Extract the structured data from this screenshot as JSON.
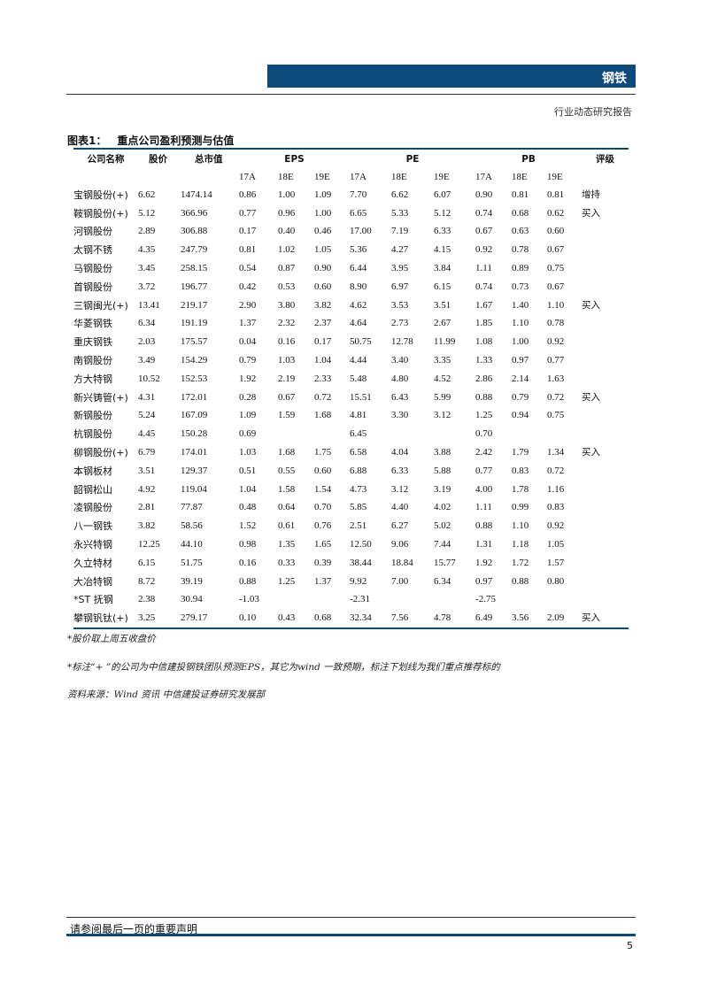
{
  "header": {
    "section": "钢铁",
    "report_type": "行业动态研究报告"
  },
  "figure": {
    "label": "图表1：",
    "title": "重点公司盈利预测与估值"
  },
  "table": {
    "headers": {
      "name": "公司名称",
      "price": "股价",
      "mcap": "总市值",
      "eps": "EPS",
      "pe": "PE",
      "pb": "PB",
      "rating": "评级"
    },
    "subheaders": [
      "17A",
      "18E",
      "19E",
      "17A",
      "18E",
      "19E",
      "17A",
      "18E",
      "19E"
    ],
    "rows": [
      [
        "宝钢股份(+)",
        "6.62",
        "1474.14",
        "0.86",
        "1.00",
        "1.09",
        "7.70",
        "6.62",
        "6.07",
        "0.90",
        "0.81",
        "0.81",
        "增持"
      ],
      [
        "鞍钢股份(+)",
        "5.12",
        "366.96",
        "0.77",
        "0.96",
        "1.00",
        "6.65",
        "5.33",
        "5.12",
        "0.74",
        "0.68",
        "0.62",
        "买入"
      ],
      [
        "河钢股份",
        "2.89",
        "306.88",
        "0.17",
        "0.40",
        "0.46",
        "17.00",
        "7.19",
        "6.33",
        "0.67",
        "0.63",
        "0.60",
        ""
      ],
      [
        "太钢不锈",
        "4.35",
        "247.79",
        "0.81",
        "1.02",
        "1.05",
        "5.36",
        "4.27",
        "4.15",
        "0.92",
        "0.78",
        "0.67",
        ""
      ],
      [
        "马钢股份",
        "3.45",
        "258.15",
        "0.54",
        "0.87",
        "0.90",
        "6.44",
        "3.95",
        "3.84",
        "1.11",
        "0.89",
        "0.75",
        ""
      ],
      [
        "首钢股份",
        "3.72",
        "196.77",
        "0.42",
        "0.53",
        "0.60",
        "8.90",
        "6.97",
        "6.15",
        "0.74",
        "0.73",
        "0.67",
        ""
      ],
      [
        "三钢闽光(+)",
        "13.41",
        "219.17",
        "2.90",
        "3.80",
        "3.82",
        "4.62",
        "3.53",
        "3.51",
        "1.67",
        "1.40",
        "1.10",
        "买入"
      ],
      [
        "华菱钢铁",
        "6.34",
        "191.19",
        "1.37",
        "2.32",
        "2.37",
        "4.64",
        "2.73",
        "2.67",
        "1.85",
        "1.10",
        "0.78",
        ""
      ],
      [
        "重庆钢铁",
        "2.03",
        "175.57",
        "0.04",
        "0.16",
        "0.17",
        "50.75",
        "12.78",
        "11.99",
        "1.08",
        "1.00",
        "0.92",
        ""
      ],
      [
        "南钢股份",
        "3.49",
        "154.29",
        "0.79",
        "1.03",
        "1.04",
        "4.44",
        "3.40",
        "3.35",
        "1.33",
        "0.97",
        "0.77",
        ""
      ],
      [
        "方大特钢",
        "10.52",
        "152.53",
        "1.92",
        "2.19",
        "2.33",
        "5.48",
        "4.80",
        "4.52",
        "2.86",
        "2.14",
        "1.63",
        ""
      ],
      [
        "新兴铸管(+)",
        "4.31",
        "172.01",
        "0.28",
        "0.67",
        "0.72",
        "15.51",
        "6.43",
        "5.99",
        "0.88",
        "0.79",
        "0.72",
        "买入"
      ],
      [
        "新钢股份",
        "5.24",
        "167.09",
        "1.09",
        "1.59",
        "1.68",
        "4.81",
        "3.30",
        "3.12",
        "1.25",
        "0.94",
        "0.75",
        ""
      ],
      [
        "杭钢股份",
        "4.45",
        "150.28",
        "0.69",
        "",
        "",
        "6.45",
        "",
        "",
        "0.70",
        "",
        "",
        ""
      ],
      [
        "柳钢股份(+)",
        "6.79",
        "174.01",
        "1.03",
        "1.68",
        "1.75",
        "6.58",
        "4.04",
        "3.88",
        "2.42",
        "1.79",
        "1.34",
        "买入"
      ],
      [
        "本钢板材",
        "3.51",
        "129.37",
        "0.51",
        "0.55",
        "0.60",
        "6.88",
        "6.33",
        "5.88",
        "0.77",
        "0.83",
        "0.72",
        ""
      ],
      [
        "韶钢松山",
        "4.92",
        "119.04",
        "1.04",
        "1.58",
        "1.54",
        "4.73",
        "3.12",
        "3.19",
        "4.00",
        "1.78",
        "1.16",
        ""
      ],
      [
        "凌钢股份",
        "2.81",
        "77.87",
        "0.48",
        "0.64",
        "0.70",
        "5.85",
        "4.40",
        "4.02",
        "1.11",
        "0.99",
        "0.83",
        ""
      ],
      [
        "八一钢铁",
        "3.82",
        "58.56",
        "1.52",
        "0.61",
        "0.76",
        "2.51",
        "6.27",
        "5.02",
        "0.88",
        "1.10",
        "0.92",
        ""
      ],
      [
        "永兴特钢",
        "12.25",
        "44.10",
        "0.98",
        "1.35",
        "1.65",
        "12.50",
        "9.06",
        "7.44",
        "1.31",
        "1.18",
        "1.05",
        ""
      ],
      [
        "久立特材",
        "6.15",
        "51.75",
        "0.16",
        "0.33",
        "0.39",
        "38.44",
        "18.84",
        "15.77",
        "1.92",
        "1.72",
        "1.57",
        ""
      ],
      [
        "大冶特钢",
        "8.72",
        "39.19",
        "0.88",
        "1.25",
        "1.37",
        "9.92",
        "7.00",
        "6.34",
        "0.97",
        "0.88",
        "0.80",
        ""
      ],
      [
        "*ST 抚钢",
        "2.38",
        "30.94",
        "-1.03",
        "",
        "",
        "-2.31",
        "",
        "",
        "-2.75",
        "",
        "",
        ""
      ],
      [
        "攀钢钒钛(+)",
        "3.25",
        "279.17",
        "0.10",
        "0.43",
        "0.68",
        "32.34",
        "7.56",
        "4.78",
        "6.49",
        "3.56",
        "2.09",
        "买入"
      ]
    ]
  },
  "notes": [
    "*股价取上周五收盘价",
    "*标注“+ ”的公司为中信建投钢铁团队预测EPS，其它为wind 一致预期，标注下划线为我们重点推荐标的",
    "资料来源：Wind 资讯 中信建投证券研究发展部"
  ],
  "footer": {
    "disclaimer": "请参阅最后一页的重要声明",
    "page": "5"
  },
  "colors": {
    "accent": "#0d4a7c"
  }
}
